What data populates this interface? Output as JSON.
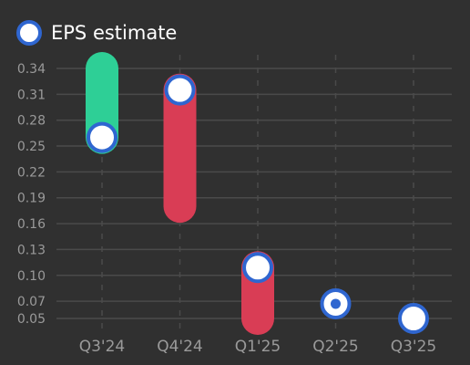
{
  "chart_data": {
    "type": "bar",
    "title": "",
    "xlabel": "",
    "ylabel": "",
    "categories": [
      "Q3'24",
      "Q4'24",
      "Q1'25",
      "Q2'25",
      "Q3'25"
    ],
    "y_ticks": [
      "0.34",
      "0.31",
      "0.28",
      "0.25",
      "0.22",
      "0.19",
      "0.16",
      "0.13",
      "0.10",
      "0.07",
      "0.05"
    ],
    "ylim": [
      0.05,
      0.34
    ],
    "grid": true,
    "legend": {
      "position": "top-left",
      "entries": [
        "EPS estimate"
      ]
    },
    "series": [
      {
        "name": "EPS estimate",
        "values": [
          0.26,
          0.315,
          0.109,
          0.067,
          0.05
        ]
      }
    ],
    "ranges": [
      {
        "low": 0.26,
        "high": 0.34,
        "direction": "beat"
      },
      {
        "low": 0.18,
        "high": 0.315,
        "direction": "miss"
      },
      {
        "low": 0.05,
        "high": 0.109,
        "direction": "miss"
      },
      {
        "low": 0.067,
        "high": 0.067,
        "direction": "inline"
      },
      {
        "low": 0.05,
        "high": 0.05,
        "direction": "none"
      }
    ],
    "colors": {
      "background": "#303030",
      "grid": "#4a4a4a",
      "beat": "#2ecf96",
      "miss": "#d93d55",
      "marker_fill": "#ffffff",
      "marker_border": "#2f66d0",
      "tick_text": "#9a9a9a",
      "legend_text": "#ffffff"
    }
  }
}
